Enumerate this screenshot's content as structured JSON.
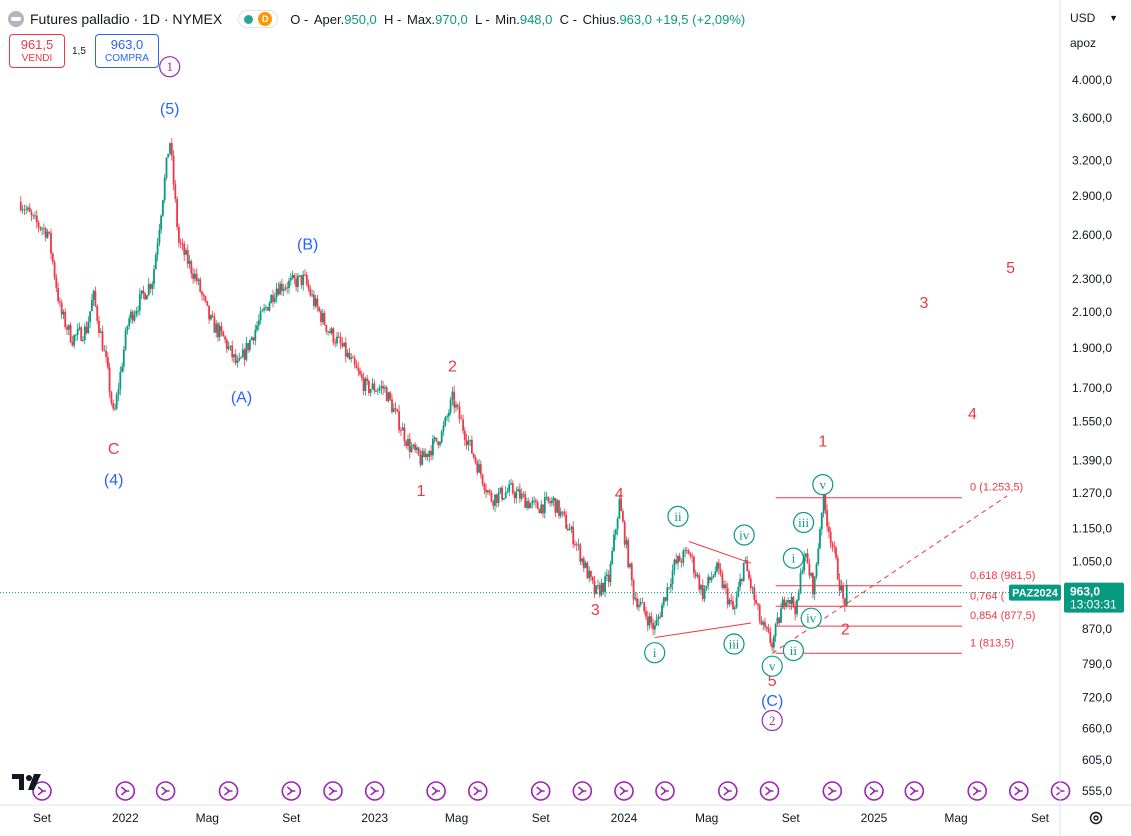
{
  "header": {
    "title": "Futures palladio · 1D · NYMEX",
    "flag": "D",
    "open_label": "O",
    "open_text": "Aper.",
    "open": "950,0",
    "high_label": "H",
    "high_text": "Max.",
    "high": "970,0",
    "low_label": "L",
    "low_text": "Min.",
    "low": "948,0",
    "close_label": "C",
    "close_text": "Chius.",
    "close": "963,0",
    "change": "+19,5 (+2,09%)"
  },
  "trade": {
    "sell_price": "961,5",
    "sell_label": "VENDI",
    "spread": "1,5",
    "buy_price": "963,0",
    "buy_label": "COMPRA"
  },
  "controls": {
    "currency": "USD",
    "scale_mode": "apoz"
  },
  "colors": {
    "up": "#089981",
    "down": "#f23645",
    "wave_red": "#f23645",
    "wave_blue": "#2962ff",
    "wave_purple": "#9c27b0",
    "wave_green": "#089981",
    "fib": "#f23645",
    "price_tag": "#089981"
  },
  "chart_data": {
    "type": "candlestick",
    "y_scale": "log",
    "ylim": [
      540,
      4400
    ],
    "y_ticks": [
      "4.000,0",
      "3.600,0",
      "3.200,0",
      "2.900,0",
      "2.600,0",
      "2.300,0",
      "2.100,0",
      "1.900,0",
      "1.700,0",
      "1.550,0",
      "1.390,0",
      "1.270,0",
      "1.150,0",
      "1.050,0",
      "870,0",
      "790,0",
      "720,0",
      "660,0",
      "605,0",
      "555,0"
    ],
    "y_tick_values": [
      4000,
      3600,
      3200,
      2900,
      2600,
      2300,
      2100,
      1900,
      1700,
      1550,
      1390,
      1270,
      1150,
      1050,
      870,
      790,
      720,
      660,
      605,
      555
    ],
    "x_ticks": [
      "Set",
      "2022",
      "Mag",
      "Set",
      "2023",
      "Mag",
      "Set",
      "2024",
      "Mag",
      "Set",
      "2025",
      "Mag",
      "Set"
    ],
    "x_tick_dates": [
      "2021-09",
      "2022-01",
      "2022-05",
      "2022-09",
      "2023-01",
      "2023-05",
      "2023-09",
      "2024-01",
      "2024-05",
      "2024-09",
      "2025-01",
      "2025-05",
      "2025-09"
    ],
    "price_path": [
      {
        "date": "2021-08-01",
        "price": 2850
      },
      {
        "date": "2021-08-20",
        "price": 2700
      },
      {
        "date": "2021-09-10",
        "price": 2620
      },
      {
        "date": "2021-09-28",
        "price": 2100
      },
      {
        "date": "2021-10-15",
        "price": 1950
      },
      {
        "date": "2021-11-05",
        "price": 2000
      },
      {
        "date": "2021-11-15",
        "price": 2200
      },
      {
        "date": "2021-12-05",
        "price": 1800
      },
      {
        "date": "2021-12-15",
        "price": 1560
      },
      {
        "date": "2022-01-05",
        "price": 2050
      },
      {
        "date": "2022-02-10",
        "price": 2300
      },
      {
        "date": "2022-03-07",
        "price": 3400
      },
      {
        "date": "2022-03-20",
        "price": 2550
      },
      {
        "date": "2022-04-15",
        "price": 2300
      },
      {
        "date": "2022-05-05",
        "price": 2050
      },
      {
        "date": "2022-05-25",
        "price": 1950
      },
      {
        "date": "2022-06-15",
        "price": 1800
      },
      {
        "date": "2022-07-10",
        "price": 2000
      },
      {
        "date": "2022-08-10",
        "price": 2250
      },
      {
        "date": "2022-09-20",
        "price": 2300
      },
      {
        "date": "2022-10-05",
        "price": 2150
      },
      {
        "date": "2022-10-25",
        "price": 2000
      },
      {
        "date": "2022-11-15",
        "price": 1900
      },
      {
        "date": "2022-12-20",
        "price": 1700
      },
      {
        "date": "2023-01-15",
        "price": 1700
      },
      {
        "date": "2023-02-20",
        "price": 1450
      },
      {
        "date": "2023-03-10",
        "price": 1390
      },
      {
        "date": "2023-04-10",
        "price": 1500
      },
      {
        "date": "2023-04-25",
        "price": 1650
      },
      {
        "date": "2023-05-20",
        "price": 1450
      },
      {
        "date": "2023-06-20",
        "price": 1250
      },
      {
        "date": "2023-07-20",
        "price": 1280
      },
      {
        "date": "2023-08-25",
        "price": 1220
      },
      {
        "date": "2023-09-20",
        "price": 1240
      },
      {
        "date": "2023-10-20",
        "price": 1120
      },
      {
        "date": "2023-11-20",
        "price": 960
      },
      {
        "date": "2023-12-10",
        "price": 1000
      },
      {
        "date": "2023-12-25",
        "price": 1240
      },
      {
        "date": "2024-01-15",
        "price": 960
      },
      {
        "date": "2024-02-15",
        "price": 870
      },
      {
        "date": "2024-03-15",
        "price": 1040
      },
      {
        "date": "2024-04-05",
        "price": 1080
      },
      {
        "date": "2024-04-25",
        "price": 960
      },
      {
        "date": "2024-05-15",
        "price": 1030
      },
      {
        "date": "2024-06-10",
        "price": 910
      },
      {
        "date": "2024-06-25",
        "price": 1050
      },
      {
        "date": "2024-07-20",
        "price": 880
      },
      {
        "date": "2024-08-05",
        "price": 835
      },
      {
        "date": "2024-08-25",
        "price": 960
      },
      {
        "date": "2024-09-10",
        "price": 920
      },
      {
        "date": "2024-09-20",
        "price": 1080
      },
      {
        "date": "2024-10-05",
        "price": 970
      },
      {
        "date": "2024-10-18",
        "price": 1250
      },
      {
        "date": "2024-11-01",
        "price": 1100
      },
      {
        "date": "2024-11-18",
        "price": 930
      },
      {
        "date": "2024-11-22",
        "price": 963
      }
    ],
    "last_price": "963,0",
    "last_price_label": "PAZ2024",
    "countdown": "13:03:31",
    "fib_levels": [
      {
        "label": "0 (1.253,5)",
        "value": 1253.5
      },
      {
        "label": "0,618 (981,5)",
        "value": 981.5
      },
      {
        "label": "0,764 (",
        "value": 927.0
      },
      {
        "label": "0,854 (877,5)",
        "value": 877.5
      },
      {
        "label": "1 (813,5)",
        "value": 813.5
      }
    ],
    "wave_labels": [
      {
        "text": "1",
        "style": "circle",
        "color": "wave_purple",
        "date": "2022-03-07",
        "price": 4150
      },
      {
        "text": "(5)",
        "style": "plain",
        "color": "wave_blue",
        "date": "2022-03-07",
        "price": 3700
      },
      {
        "text": "C",
        "style": "plain",
        "color": "wave_red",
        "date": "2021-12-15",
        "price": 1440
      },
      {
        "text": "(4)",
        "style": "plain",
        "color": "wave_blue",
        "date": "2021-12-15",
        "price": 1320
      },
      {
        "text": "(A)",
        "style": "plain",
        "color": "wave_blue",
        "date": "2022-06-20",
        "price": 1660
      },
      {
        "text": "(B)",
        "style": "plain",
        "color": "wave_blue",
        "date": "2022-09-25",
        "price": 2540
      },
      {
        "text": "2",
        "style": "plain",
        "color": "wave_red",
        "date": "2023-04-25",
        "price": 1810
      },
      {
        "text": "1",
        "style": "plain",
        "color": "wave_red",
        "date": "2023-03-10",
        "price": 1280
      },
      {
        "text": "4",
        "style": "plain",
        "color": "wave_red",
        "date": "2023-12-25",
        "price": 1270
      },
      {
        "text": "3",
        "style": "plain",
        "color": "wave_red",
        "date": "2023-11-20",
        "price": 920
      },
      {
        "text": "5",
        "style": "plain",
        "color": "wave_red",
        "date": "2024-08-05",
        "price": 755
      },
      {
        "text": "(C)",
        "style": "plain",
        "color": "wave_blue",
        "date": "2024-08-05",
        "price": 715
      },
      {
        "text": "2",
        "style": "circle",
        "color": "wave_purple",
        "date": "2024-08-05",
        "price": 675
      },
      {
        "text": "i",
        "style": "circle",
        "color": "wave_green",
        "date": "2024-02-15",
        "price": 815
      },
      {
        "text": "ii",
        "style": "circle",
        "color": "wave_green",
        "date": "2024-03-20",
        "price": 1190
      },
      {
        "text": "iii",
        "style": "circle",
        "color": "wave_green",
        "date": "2024-06-10",
        "price": 835
      },
      {
        "text": "iv",
        "style": "circle",
        "color": "wave_green",
        "date": "2024-06-25",
        "price": 1130
      },
      {
        "text": "v",
        "style": "circle",
        "color": "wave_green",
        "date": "2024-08-05",
        "price": 785
      },
      {
        "text": "i",
        "style": "circle",
        "color": "wave_green",
        "date": "2024-09-05",
        "price": 1060
      },
      {
        "text": "ii",
        "style": "circle",
        "color": "wave_green",
        "date": "2024-09-05",
        "price": 820
      },
      {
        "text": "iii",
        "style": "circle",
        "color": "wave_green",
        "date": "2024-09-20",
        "price": 1170
      },
      {
        "text": "iv",
        "style": "circle",
        "color": "wave_green",
        "date": "2024-10-01",
        "price": 897
      },
      {
        "text": "v",
        "style": "circle",
        "color": "wave_green",
        "date": "2024-10-18",
        "price": 1300
      },
      {
        "text": "2",
        "style": "plain",
        "color": "wave_red",
        "date": "2024-11-20",
        "price": 872
      },
      {
        "text": "1",
        "style": "plain",
        "color": "wave_red",
        "date": "2024-10-18",
        "price": 1470
      },
      {
        "text": "3",
        "style": "plain",
        "color": "wave_red",
        "date": "2025-03-15",
        "price": 2160
      },
      {
        "text": "4",
        "style": "plain",
        "color": "wave_red",
        "date": "2025-05-25",
        "price": 1585
      },
      {
        "text": "5",
        "style": "plain",
        "color": "wave_red",
        "date": "2025-07-20",
        "price": 2380
      }
    ],
    "event_markers": [
      "2021-09",
      "2022-01",
      "2022-03",
      "2022-06",
      "2022-09",
      "2022-11",
      "2023-01",
      "2023-04",
      "2023-06",
      "2023-09",
      "2023-11",
      "2024-01",
      "2024-03",
      "2024-06",
      "2024-08",
      "2024-11",
      "2025-01",
      "2025-03",
      "2025-06",
      "2025-08",
      "2025-10"
    ]
  }
}
